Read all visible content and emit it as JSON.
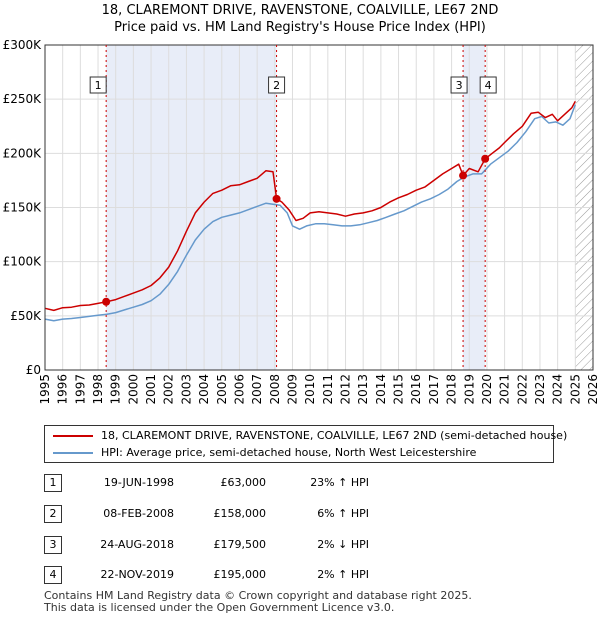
{
  "title_line1": "18, CLAREMONT DRIVE, RAVENSTONE, COALVILLE, LE67 2ND",
  "title_line2": "Price paid vs. HM Land Registry's House Price Index (HPI)",
  "chart_data": {
    "type": "line",
    "title": "18, CLAREMONT DRIVE, RAVENSTONE, COALVILLE, LE67 2ND — Price paid vs. HM Land Registry's House Price Index (HPI)",
    "xlabel": "",
    "ylabel": "",
    "xlim": [
      1995,
      2026
    ],
    "ylim": [
      0,
      300000
    ],
    "y_ticks": [
      0,
      50000,
      100000,
      150000,
      200000,
      250000,
      300000
    ],
    "y_tick_labels": [
      "£0",
      "£50K",
      "£100K",
      "£150K",
      "£200K",
      "£250K",
      "£300K"
    ],
    "x_ticks": [
      1995,
      1996,
      1997,
      1998,
      1999,
      2000,
      2001,
      2002,
      2003,
      2004,
      2005,
      2006,
      2007,
      2008,
      2009,
      2010,
      2011,
      2012,
      2013,
      2014,
      2015,
      2016,
      2017,
      2018,
      2019,
      2020,
      2021,
      2022,
      2023,
      2024,
      2025,
      2026
    ],
    "x_tick_labels": [
      "1995",
      "1996",
      "1997",
      "1998",
      "1999",
      "2000",
      "2001",
      "2002",
      "2003",
      "2004",
      "2005",
      "2006",
      "2007",
      "2008",
      "2009",
      "2010",
      "2011",
      "2012",
      "2013",
      "2014",
      "2015",
      "2016",
      "2017",
      "2018",
      "2019",
      "2020",
      "2021",
      "2022",
      "2023",
      "2024",
      "2025",
      "2026"
    ],
    "grid": true,
    "shaded_spans": [
      [
        1998.46,
        2008.1
      ],
      [
        2018.65,
        2019.9
      ]
    ],
    "hatched_from": 2025.0,
    "series": [
      {
        "name": "18, CLAREMONT DRIVE, RAVENSTONE, COALVILLE, LE67 2ND (semi-detached house)",
        "color": "#cc0000",
        "x": [
          1995.0,
          1995.5,
          1996.0,
          1996.5,
          1997.0,
          1997.5,
          1998.0,
          1998.46,
          1999.0,
          1999.5,
          2000.0,
          2000.5,
          2001.0,
          2001.5,
          2002.0,
          2002.5,
          2003.0,
          2003.5,
          2004.0,
          2004.5,
          2005.0,
          2005.5,
          2006.0,
          2006.5,
          2007.0,
          2007.5,
          2007.9,
          2008.1,
          2008.4,
          2008.8,
          2009.2,
          2009.6,
          2010.0,
          2010.5,
          2011.0,
          2011.5,
          2012.0,
          2012.5,
          2013.0,
          2013.5,
          2014.0,
          2014.5,
          2015.0,
          2015.5,
          2016.0,
          2016.5,
          2017.0,
          2017.5,
          2018.0,
          2018.4,
          2018.65,
          2019.0,
          2019.5,
          2019.9,
          2020.3,
          2020.7,
          2021.0,
          2021.5,
          2022.0,
          2022.5,
          2022.9,
          2023.3,
          2023.7,
          2024.0,
          2024.4,
          2024.8,
          2025.0
        ],
        "values": [
          57000,
          55000,
          57500,
          58000,
          59500,
          60000,
          61500,
          63000,
          65000,
          68000,
          71000,
          74000,
          78000,
          85000,
          95000,
          110000,
          128000,
          145000,
          155000,
          163000,
          166000,
          170000,
          171000,
          174000,
          177000,
          184000,
          183000,
          158000,
          155000,
          148000,
          138000,
          140000,
          145000,
          146000,
          145000,
          144000,
          142000,
          144000,
          145000,
          147000,
          150000,
          155000,
          159000,
          162000,
          166000,
          169000,
          175000,
          181000,
          186000,
          190000,
          179500,
          186000,
          183000,
          195000,
          200000,
          205000,
          210000,
          218000,
          225000,
          237000,
          238000,
          233000,
          236000,
          230000,
          236000,
          242000,
          248000
        ]
      },
      {
        "name": "HPI: Average price, semi-detached house, North West Leicestershire",
        "color": "#6699cc",
        "x": [
          1995.0,
          1995.5,
          1996.0,
          1996.5,
          1997.0,
          1997.5,
          1998.0,
          1998.5,
          1999.0,
          1999.5,
          2000.0,
          2000.5,
          2001.0,
          2001.5,
          2002.0,
          2002.5,
          2003.0,
          2003.5,
          2004.0,
          2004.5,
          2005.0,
          2005.5,
          2006.0,
          2006.5,
          2007.0,
          2007.5,
          2007.9,
          2008.3,
          2008.7,
          2009.0,
          2009.4,
          2009.8,
          2010.3,
          2010.8,
          2011.3,
          2011.8,
          2012.3,
          2012.8,
          2013.3,
          2013.8,
          2014.3,
          2014.8,
          2015.3,
          2015.8,
          2016.3,
          2016.8,
          2017.3,
          2017.8,
          2018.3,
          2018.7,
          2019.2,
          2019.7,
          2020.2,
          2020.7,
          2021.2,
          2021.7,
          2022.2,
          2022.7,
          2023.1,
          2023.5,
          2023.9,
          2024.3,
          2024.7,
          2025.0
        ],
        "values": [
          47000,
          45500,
          47000,
          47500,
          48500,
          49500,
          50500,
          51500,
          53000,
          55500,
          58000,
          60500,
          64000,
          70000,
          79000,
          91000,
          106000,
          120000,
          130000,
          137000,
          141000,
          143000,
          145000,
          148000,
          151000,
          154000,
          153000,
          152000,
          145000,
          133000,
          130000,
          133000,
          135000,
          135000,
          134000,
          133000,
          133000,
          134000,
          136000,
          138000,
          141000,
          144000,
          147000,
          151000,
          155000,
          158000,
          162000,
          167000,
          174000,
          178000,
          181000,
          181000,
          190000,
          196000,
          202000,
          210000,
          220000,
          232000,
          234000,
          228000,
          229000,
          226000,
          232000,
          245000
        ]
      }
    ],
    "markers": [
      {
        "label": "1",
        "x": 1998.46,
        "y": 63000
      },
      {
        "label": "2",
        "x": 2008.1,
        "y": 158000
      },
      {
        "label": "3",
        "x": 2018.65,
        "y": 179500
      },
      {
        "label": "4",
        "x": 2019.9,
        "y": 195000
      }
    ]
  },
  "legend": {
    "property": "18, CLAREMONT DRIVE, RAVENSTONE, COALVILLE, LE67 2ND (semi-detached house)",
    "hpi": "HPI: Average price, semi-detached house, North West Leicestershire"
  },
  "transactions": [
    {
      "num": "1",
      "date": "19-JUN-1998",
      "price": "£63,000",
      "hpi": "23% ↑ HPI"
    },
    {
      "num": "2",
      "date": "08-FEB-2008",
      "price": "£158,000",
      "hpi": "6% ↑ HPI"
    },
    {
      "num": "3",
      "date": "24-AUG-2018",
      "price": "£179,500",
      "hpi": "2% ↓ HPI"
    },
    {
      "num": "4",
      "date": "22-NOV-2019",
      "price": "£195,000",
      "hpi": "2% ↑ HPI"
    }
  ],
  "footer_line1": "Contains HM Land Registry data © Crown copyright and database right 2025.",
  "footer_line2": "This data is licensed under the Open Government Licence v3.0."
}
